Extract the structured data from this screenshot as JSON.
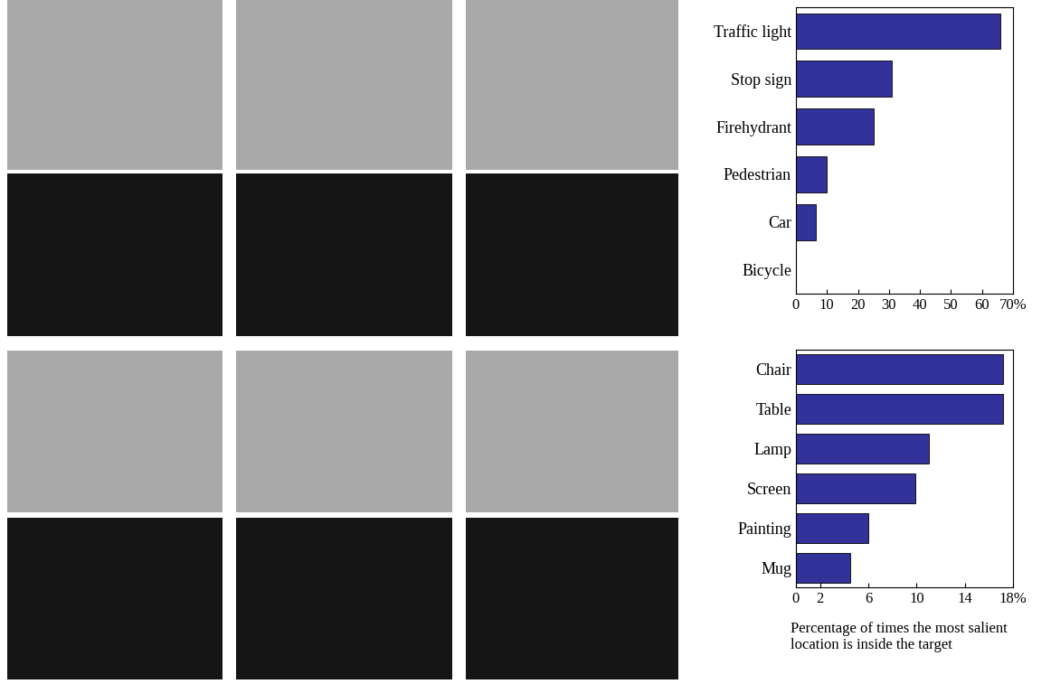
{
  "chart_data": [
    {
      "type": "bar",
      "orientation": "horizontal",
      "color": "#32329a",
      "categories": [
        "Traffic light",
        "Stop sign",
        "Firehydrant",
        "Pedestrian",
        "Car",
        "Bicycle"
      ],
      "values": [
        66,
        31,
        25,
        10,
        6.5,
        0
      ],
      "xlim": [
        0,
        70
      ],
      "xticks": [
        0,
        10,
        20,
        30,
        40,
        50,
        60,
        {
          "value": 70,
          "label": "70%"
        }
      ]
    },
    {
      "type": "bar",
      "orientation": "horizontal",
      "color": "#32329a",
      "categories": [
        "Chair",
        "Table",
        "Lamp",
        "Screen",
        "Painting",
        "Mug"
      ],
      "values": [
        17.2,
        17.2,
        11,
        9.9,
        6,
        4.5
      ],
      "xlim": [
        0,
        18
      ],
      "xticks": [
        0,
        2,
        6,
        10,
        14,
        {
          "value": 18,
          "label": "18%"
        }
      ],
      "x_label": "Percentage of times the most salient location is inside the target"
    }
  ]
}
